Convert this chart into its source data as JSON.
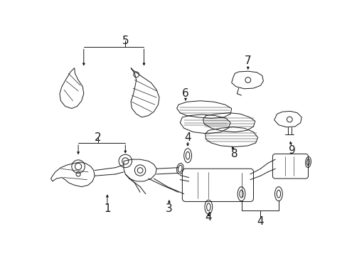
{
  "background": "#ffffff",
  "lc": "#1a1a1a",
  "lw": 0.7,
  "fig_w": 4.89,
  "fig_h": 3.6,
  "dpi": 100
}
